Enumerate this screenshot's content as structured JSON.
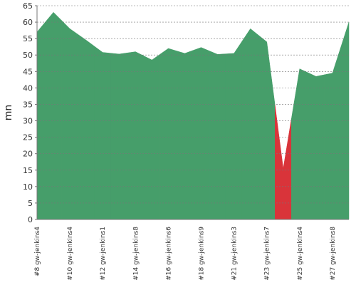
{
  "chart_data": {
    "type": "area",
    "y_label": "mn",
    "categories": [
      "#8 gw-jenkins4",
      null,
      "#10 gw-jenkins4",
      null,
      "#12 gw-jenkins1",
      null,
      "#14 gw-jenkins8",
      null,
      "#16 gw-jenkins6",
      null,
      "#18 gw-jenkins9",
      null,
      "#21 gw-jenkins3",
      null,
      "#23 gw-jenkins7",
      null,
      "#25 gw-jenkins4",
      null,
      "#27 gw-jenkins8",
      null
    ],
    "values": [
      57,
      63,
      58,
      54.5,
      50.8,
      50.3,
      51,
      48.5,
      52,
      50.5,
      52.3,
      50.2,
      50.5,
      58,
      54,
      15.5,
      45.8,
      43.5,
      44.5,
      60
    ],
    "colors": [
      "#469e6a",
      "#469e6a",
      "#469e6a",
      "#469e6a",
      "#469e6a",
      "#469e6a",
      "#469e6a",
      "#469e6a",
      "#469e6a",
      "#469e6a",
      "#469e6a",
      "#469e6a",
      "#469e6a",
      "#469e6a",
      "#469e6a",
      "#d9343a",
      "#469e6a",
      "#469e6a",
      "#469e6a",
      "#469e6a"
    ],
    "ylim": [
      0,
      65
    ],
    "yticks": [
      0,
      5,
      10,
      15,
      20,
      25,
      30,
      35,
      40,
      45,
      50,
      55,
      60,
      65
    ],
    "grid": true
  }
}
